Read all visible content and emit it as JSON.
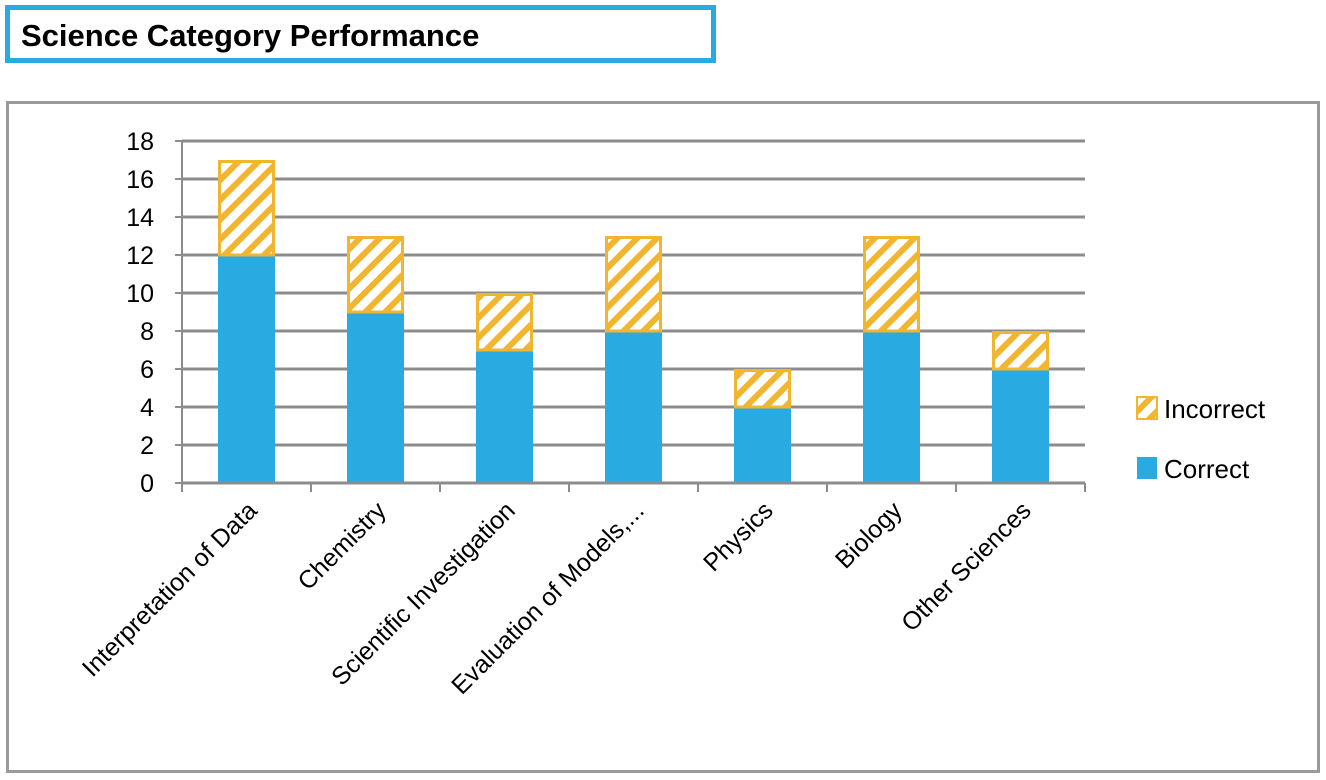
{
  "title": "Science Category Performance",
  "chart_data": {
    "type": "bar",
    "stacked": true,
    "categories": [
      "Interpretation of Data",
      "Chemistry",
      "Scientific Investigation",
      "Evaluation of Models,...",
      "Physics",
      "Biology",
      "Other Sciences"
    ],
    "series": [
      {
        "name": "Correct",
        "values": [
          12,
          9,
          7,
          8,
          4,
          8,
          6
        ],
        "color": "#29abe2",
        "pattern": "solid"
      },
      {
        "name": "Incorrect",
        "values": [
          5,
          4,
          3,
          5,
          2,
          5,
          2
        ],
        "color": "#f2b530",
        "pattern": "diagonal-hatch"
      }
    ],
    "ylim": [
      0,
      18
    ],
    "yticks": [
      "0",
      "2",
      "4",
      "6",
      "8",
      "10",
      "12",
      "14",
      "16",
      "18"
    ],
    "grid": true,
    "legend": {
      "position": "right",
      "entries": [
        "Incorrect",
        "Correct"
      ]
    }
  }
}
